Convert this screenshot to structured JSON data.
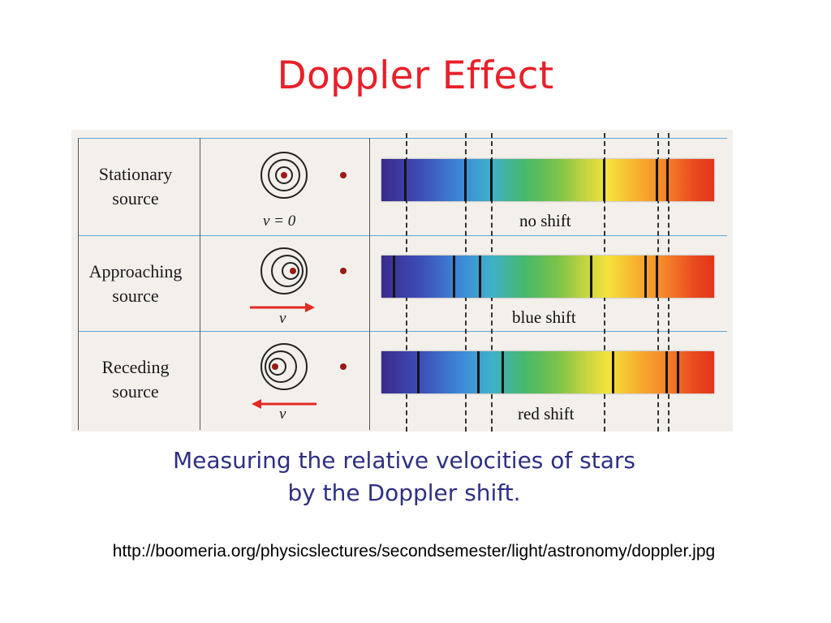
{
  "title": "Doppler Effect",
  "rows": [
    {
      "label_line1": "Stationary",
      "label_line2": "source",
      "velocity": "v = 0",
      "shift": "no shift"
    },
    {
      "label_line1": "Approaching",
      "label_line2": "source",
      "velocity": "v",
      "shift": "blue shift"
    },
    {
      "label_line1": "Receding",
      "label_line2": "source",
      "velocity": "v",
      "shift": "red shift"
    }
  ],
  "caption": {
    "line1": "Measuring the relative velocities of stars",
    "line2": "by the Doppler shift."
  },
  "source_url": "http://boomeria.org/physicslectures/secondsemester/light/astronomy/doppler.jpg",
  "colors": {
    "title": "#e8202a",
    "caption": "#2e2f82",
    "arrow": "#e02a24",
    "source_dot": "#9a1b15"
  }
}
